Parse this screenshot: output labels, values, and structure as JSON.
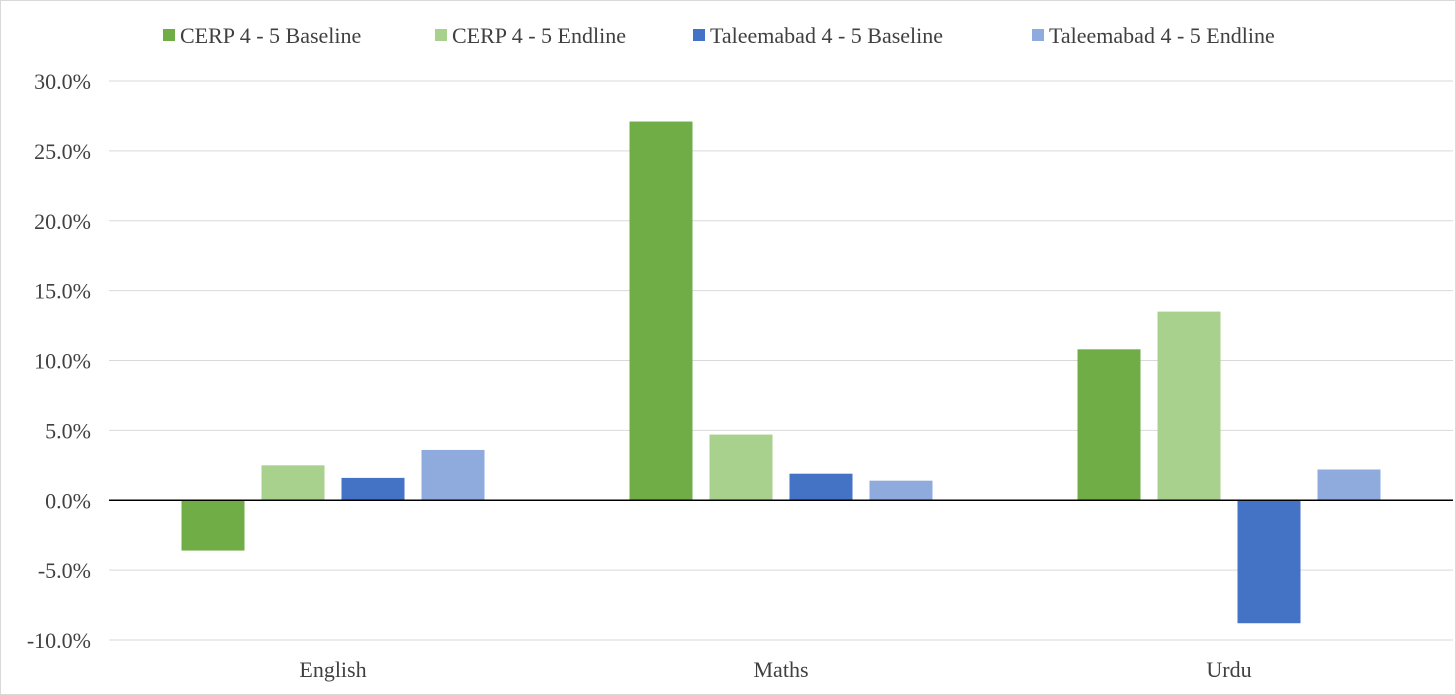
{
  "chart_data": {
    "type": "bar",
    "categories": [
      "English",
      "Maths",
      "Urdu"
    ],
    "series": [
      {
        "name": "CERP 4 - 5 Baseline",
        "color": "#70ad47",
        "values": [
          -3.6,
          27.1,
          10.8
        ]
      },
      {
        "name": "CERP 4 - 5 Endline",
        "color": "#a9d18e",
        "values": [
          2.5,
          4.7,
          13.5
        ]
      },
      {
        "name": "Taleemabad 4 - 5 Baseline",
        "color": "#4472c4",
        "values": [
          1.6,
          1.9,
          -8.8
        ]
      },
      {
        "name": "Taleemabad 4 - 5 Endline",
        "color": "#8faadc",
        "values": [
          3.6,
          1.4,
          2.2
        ]
      }
    ],
    "ylim": [
      -10,
      30
    ],
    "yticks": [
      30,
      25,
      20,
      15,
      10,
      5,
      0,
      -5,
      -10
    ],
    "ytick_labels": [
      "30.0%",
      "25.0%",
      "20.0%",
      "15.0%",
      "10.0%",
      "5.0%",
      "0.0%",
      "-5.0%",
      "-10.0%"
    ],
    "grid": true,
    "legend_position": "top"
  }
}
